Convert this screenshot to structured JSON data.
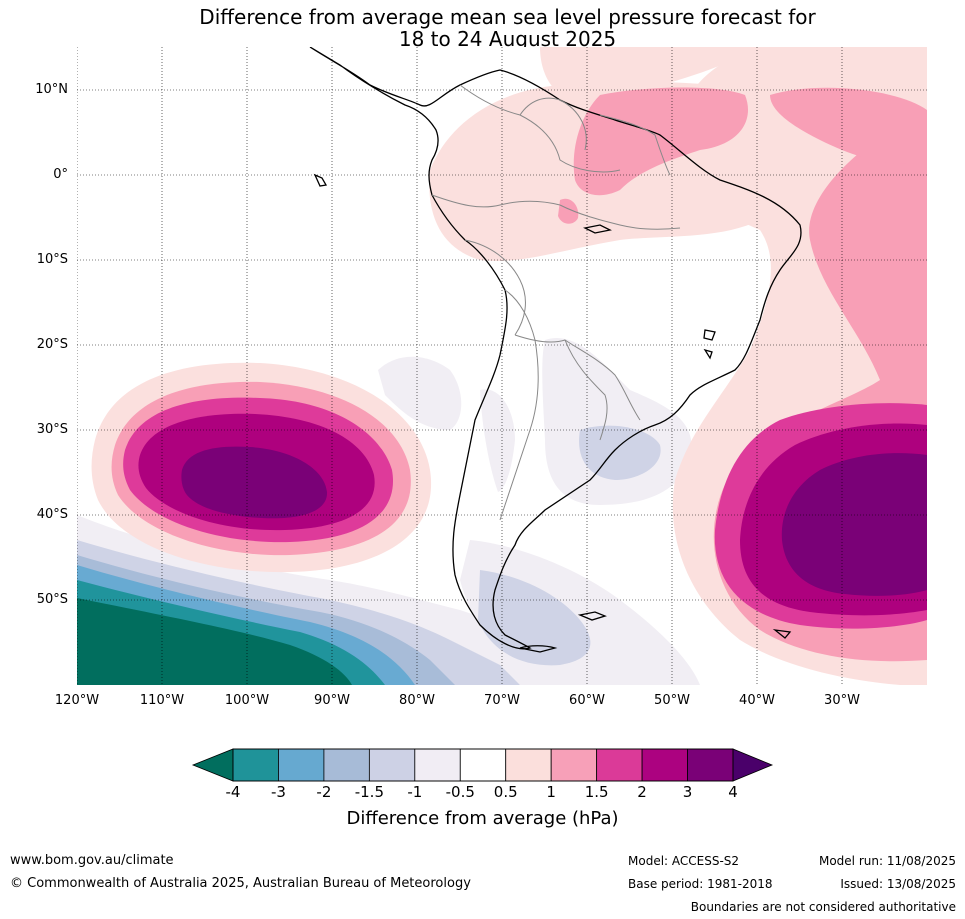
{
  "title": {
    "line1": "Difference from average mean sea level pressure forecast for",
    "line2": "18 to 24 August 2025"
  },
  "map": {
    "lat_labels": [
      "10°N",
      "0°",
      "10°S",
      "20°S",
      "30°S",
      "40°S",
      "50°S"
    ],
    "lon_labels": [
      "120°W",
      "110°W",
      "100°W",
      "90°W",
      "80°W",
      "70°W",
      "60°W",
      "50°W",
      "40°W",
      "30°W"
    ],
    "grid": true,
    "colors": {
      "ocean_far_neg": "#016e5e",
      "neg_3": "#20949c",
      "neg_2": "#68aad2",
      "neg_15": "#a8bcd8",
      "neg_1": "#cfd3e6",
      "neg_05": "#f1eef4",
      "neutral": "#ffffff",
      "pos_05": "#fbe0de",
      "pos_1": "#f89fb6",
      "pos_15": "#de3a9a",
      "pos_2": "#ae017e",
      "pos_3": "#7a0177",
      "pos_4": "#49006a",
      "coast": "#000000",
      "borders": "#888888"
    }
  },
  "colorbar": {
    "tick_labels": [
      "-4",
      "-3",
      "-2",
      "-1.5",
      "-1",
      "-0.5",
      "0.5",
      "1",
      "1.5",
      "2",
      "3",
      "4"
    ],
    "bin_colors": [
      "#1f9399",
      "#66a9d0",
      "#a7bbd7",
      "#cdd1e5",
      "#f1edf4",
      "#ffffff",
      "#fbdfdc",
      "#f7a0b8",
      "#db3a98",
      "#ac0280",
      "#7a0177"
    ],
    "low_extend_color": "#016e5e",
    "high_extend_color": "#4a006a",
    "label": "Difference from average (hPa)"
  },
  "footer": {
    "website": "www.bom.gov.au/climate",
    "copyright": "© Commonwealth of Australia 2025, Australian Bureau of Meteorology",
    "model": "Model: ACCESS-S2",
    "base_period": "Base period: 1981-2018",
    "model_run": "Model run: 11/08/2025",
    "issued": "Issued: 13/08/2025",
    "disclaimer": "Boundaries are not considered authoritative"
  }
}
